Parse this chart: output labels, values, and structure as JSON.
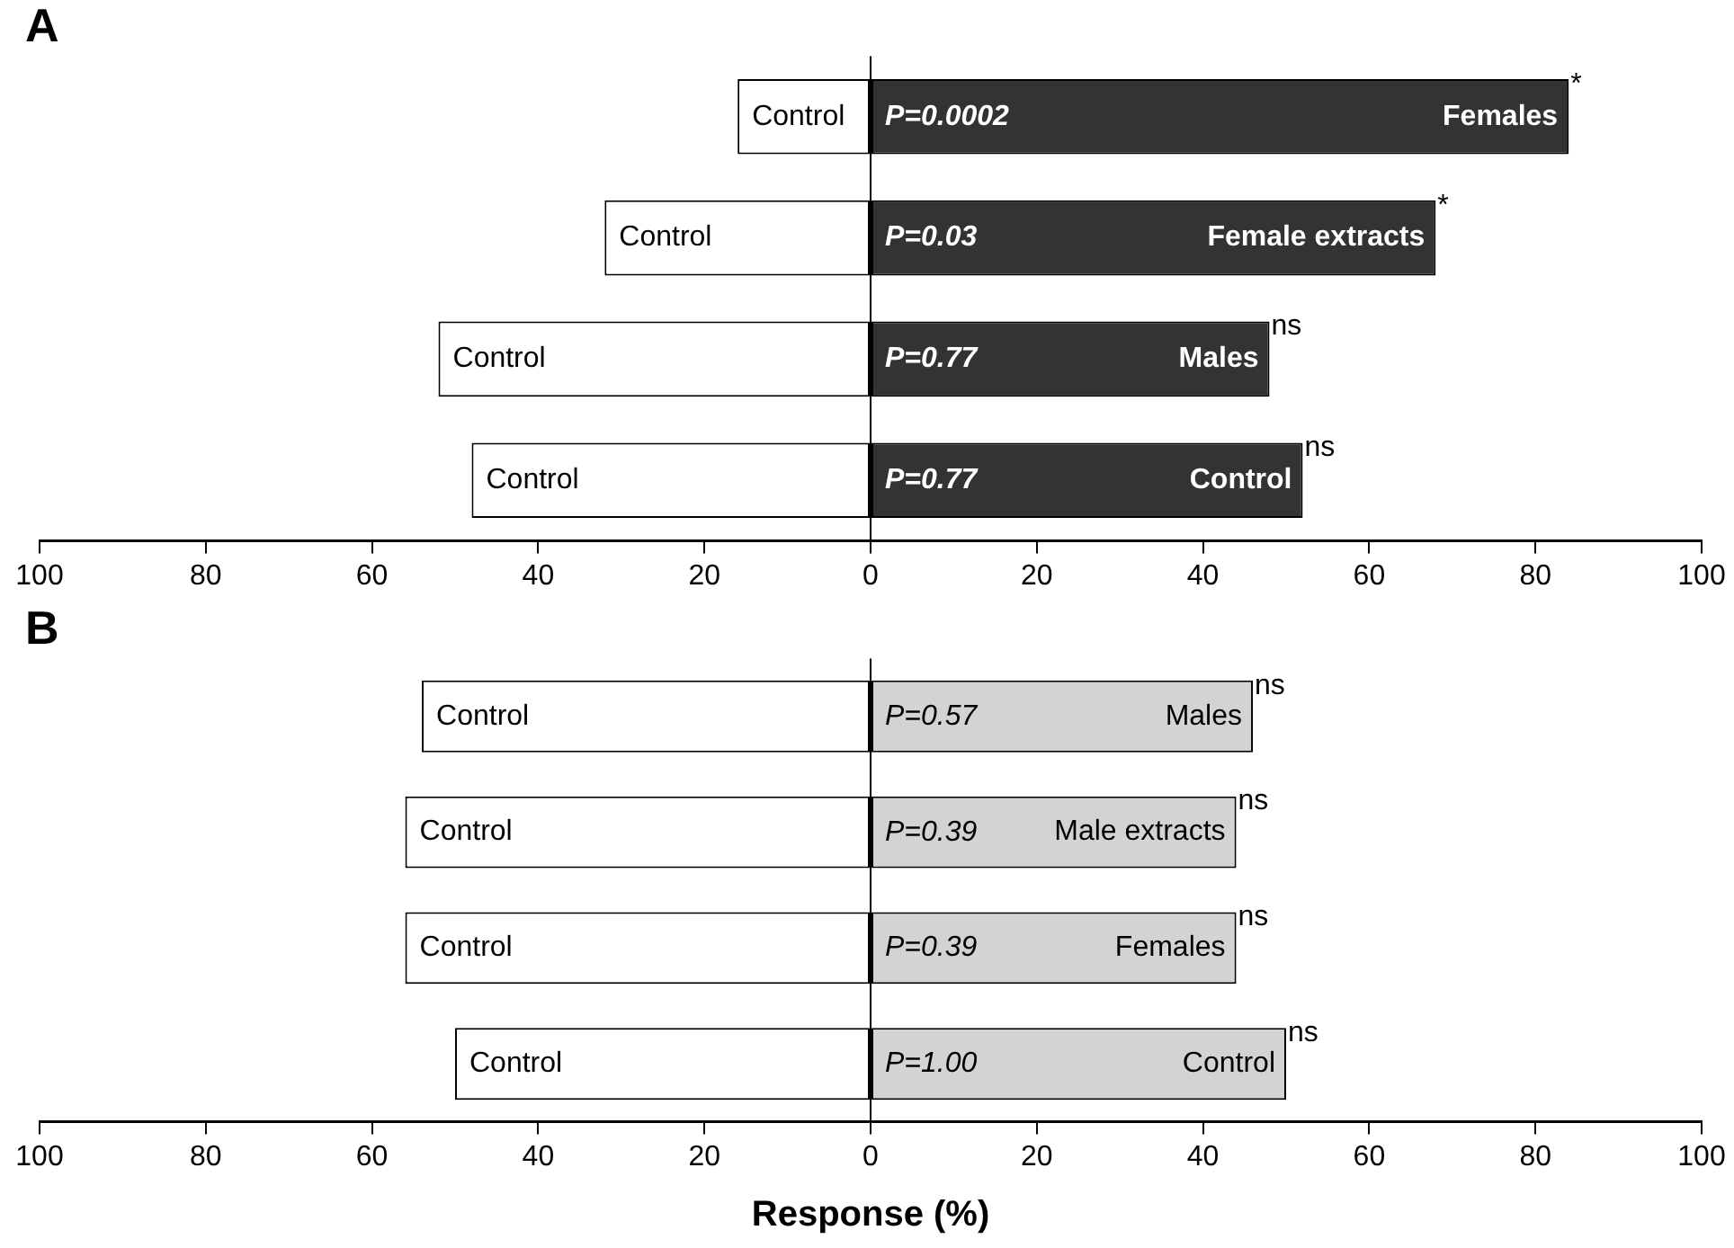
{
  "chart_data": [
    {
      "type": "bar",
      "orientation": "horizontal",
      "stacked": true,
      "title": "A",
      "categories": [
        "Females",
        "Female extracts",
        "Males",
        "Control"
      ],
      "series": [
        {
          "name": "Control",
          "color": "#ffffff",
          "values": [
            -16,
            -32,
            -52,
            -48
          ]
        },
        {
          "color": "#333333",
          "values": [
            84,
            68,
            48,
            52
          ]
        }
      ],
      "xlim": [
        -100,
        100
      ],
      "xticks": [
        {
          "value": -100,
          "label": "100"
        },
        {
          "value": -80,
          "label": "80"
        },
        {
          "value": -60,
          "label": "60"
        },
        {
          "value": -40,
          "label": "40"
        },
        {
          "value": -20,
          "label": "20"
        },
        0,
        20,
        40,
        60,
        80,
        100
      ],
      "tick_labels": "x",
      "annotations": [
        "P=0.0002",
        "P=0.03",
        "P=0.77",
        "P=0.77",
        {
          "text": "*",
          "x": 84,
          "y": "Females"
        },
        {
          "text": "*",
          "x": 68,
          "y": "Female extracts"
        },
        {
          "text": "ns",
          "x": 48,
          "y": "Males"
        },
        {
          "text": "ns",
          "x": 52,
          "y": "Control"
        }
      ]
    },
    {
      "type": "bar",
      "orientation": "horizontal",
      "stacked": true,
      "title": "B",
      "xlabel": "Response (%)",
      "categories": [
        "Males",
        "Male extracts",
        "Females",
        "Control"
      ],
      "series": [
        {
          "name": "Control",
          "color": "#ffffff",
          "values": [
            -54,
            -56,
            -56,
            -50
          ]
        },
        {
          "color": "#d3d3d3",
          "values": [
            46,
            44,
            44,
            50
          ]
        }
      ],
      "xlim": [
        -100,
        100
      ],
      "xticks": [
        {
          "value": -100,
          "label": "100"
        },
        {
          "value": -80,
          "label": "80"
        },
        {
          "value": -60,
          "label": "60"
        },
        {
          "value": -40,
          "label": "40"
        },
        {
          "value": -20,
          "label": "20"
        },
        0,
        20,
        40,
        60,
        80,
        100
      ],
      "tick_labels": "x",
      "annotations": [
        "P=0.57",
        "P=0.39",
        "P=0.39",
        "P=1.00",
        {
          "text": "ns",
          "x": 46,
          "y": "Males"
        },
        {
          "text": "ns",
          "x": 44,
          "y": "Male extracts"
        },
        {
          "text": "ns",
          "x": 44,
          "y": "Females"
        },
        {
          "text": "ns",
          "x": 50,
          "y": "Control"
        }
      ]
    }
  ]
}
